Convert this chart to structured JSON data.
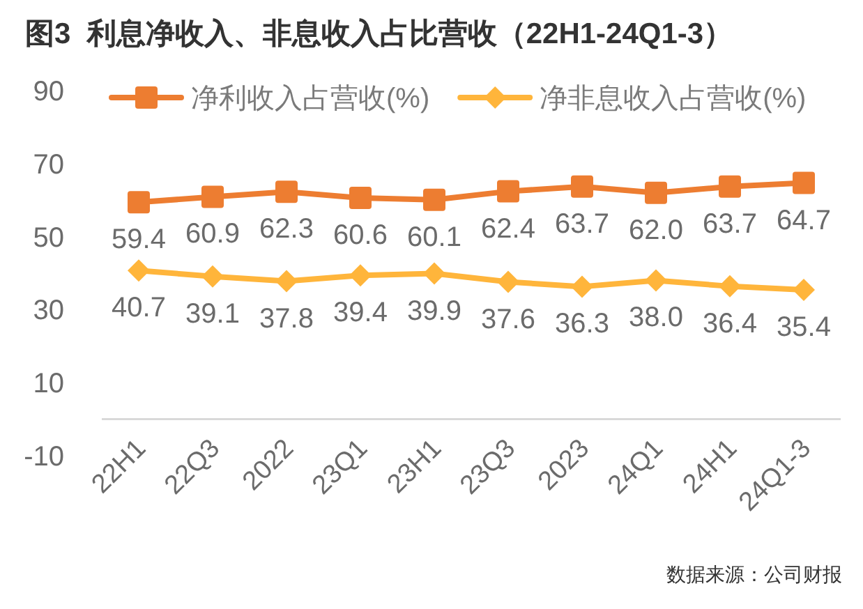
{
  "chart_data": {
    "type": "line",
    "title": "图3  利息净收入、非息收入占比营收（22H1-24Q1-3）",
    "categories": [
      "22H1",
      "22Q3",
      "2022",
      "23Q1",
      "23H1",
      "23Q3",
      "2023",
      "24Q1",
      "24H1",
      "24Q1-3"
    ],
    "series": [
      {
        "name": "净利收入占营收(%)",
        "color": "#ed7d31",
        "marker": "square",
        "values": [
          59.4,
          60.9,
          62.3,
          60.6,
          60.1,
          62.4,
          63.7,
          62.0,
          63.7,
          64.7
        ],
        "value_labels": [
          "59.4",
          "60.9",
          "62.3",
          "60.6",
          "60.1",
          "62.4",
          "63.7",
          "62.0",
          "63.7",
          "64.7"
        ]
      },
      {
        "name": "净非息收入占营收(%)",
        "color": "#ffb53b",
        "marker": "diamond",
        "values": [
          40.7,
          39.1,
          37.8,
          39.4,
          39.9,
          37.6,
          36.3,
          38.0,
          36.4,
          35.4
        ],
        "value_labels": [
          "40.7",
          "39.1",
          "37.8",
          "39.4",
          "39.9",
          "37.6",
          "36.3",
          "38.0",
          "36.4",
          "35.4"
        ]
      }
    ],
    "ylim": [
      -10,
      90
    ],
    "yticks": [
      -10,
      10,
      30,
      50,
      70,
      90
    ],
    "grid": false,
    "legend": "top",
    "annotations": [
      "数据来源：公司财报"
    ]
  }
}
